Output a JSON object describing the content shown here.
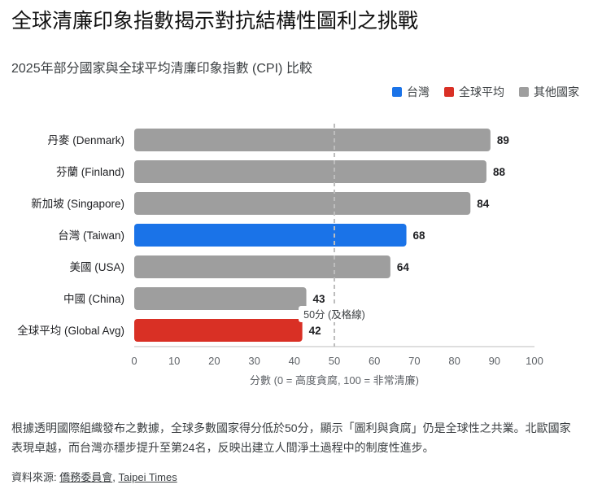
{
  "page_title": "全球清廉印象指數揭示對抗結構性圖利之挑戰",
  "chart_data": {
    "type": "bar",
    "orientation": "horizontal",
    "title": "2025年部分國家與全球平均清廉印象指數 (CPI) 比較",
    "xlabel": "分數 (0 = 高度貪腐, 100 = 非常清廉)",
    "ylabel": "",
    "xlim": [
      0,
      100
    ],
    "xticks": [
      "0",
      "10",
      "20",
      "30",
      "40",
      "50",
      "60",
      "70",
      "80",
      "90",
      "100"
    ],
    "categories": [
      "丹麥 (Denmark)",
      "芬蘭 (Finland)",
      "新加坡 (Singapore)",
      "台灣 (Taiwan)",
      "美國 (USA)",
      "中國 (China)",
      "全球平均 (Global Avg)"
    ],
    "values": [
      89,
      88,
      84,
      68,
      64,
      43,
      42
    ],
    "groups": [
      "其他國家",
      "其他國家",
      "其他國家",
      "台灣",
      "其他國家",
      "其他國家",
      "全球平均"
    ],
    "legend": {
      "placement": "top-right",
      "items": [
        {
          "label": "台灣",
          "color": "#1a73e8"
        },
        {
          "label": "全球平均",
          "color": "#d93025"
        },
        {
          "label": "其他國家",
          "color": "#9e9e9e"
        }
      ]
    },
    "reference_line": {
      "value": 50,
      "label": "50分 (及格線)"
    },
    "grid": false
  },
  "description": "根據透明國際組織發布之數據，全球多數國家得分低於50分，顯示「圖利與貪腐」仍是全球性之共業。北歐國家表現卓越，而台灣亦穩步提升至第24名，反映出建立人間淨土過程中的制度性進步。",
  "source": {
    "label": "資料來源: ",
    "links": [
      "僑務委員會",
      "Taipei Times"
    ],
    "separator": ", "
  }
}
